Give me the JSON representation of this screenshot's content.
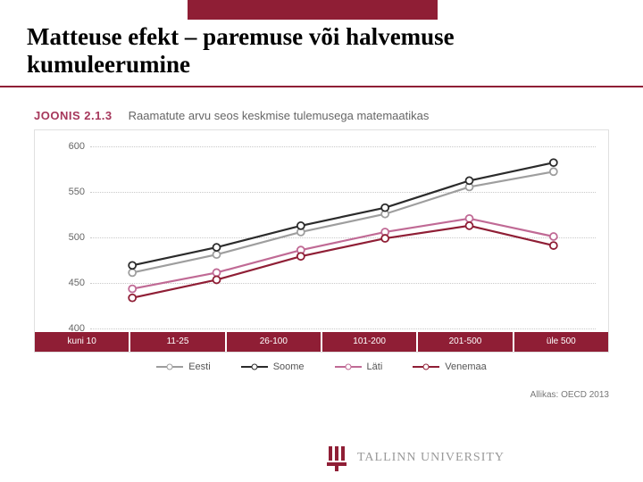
{
  "slide": {
    "title": "Matteuse efekt – paremuse või halvemuse kumuleerumine",
    "top_bar_color": "#8f1e35",
    "underline_color": "#8f1e35"
  },
  "figure": {
    "label": "JOONIS 2.1.3",
    "title": "Raamatute arvu seos keskmise tulemusega matemaatikas",
    "label_color": "#a6375b",
    "title_color": "#666666",
    "border_color": "#e0e0e0"
  },
  "chart": {
    "type": "line",
    "ylim": [
      400,
      600
    ],
    "yticks": [
      400,
      450,
      500,
      550,
      600
    ],
    "grid_color": "#c9c9c9",
    "background_color": "#ffffff",
    "categories": [
      "kuni 10",
      "11-25",
      "26-100",
      "101-200",
      "201-500",
      "üle 500"
    ],
    "xband_color": "#8f1e35",
    "xband_text_color": "#ffffff",
    "marker_fill": "#ffffff",
    "marker_radius": 4,
    "line_width": 2.2,
    "label_fontsize": 11,
    "series": [
      {
        "name": "Eesti",
        "color": "#9e9e9e",
        "values": [
          460,
          480,
          505,
          525,
          555,
          572
        ]
      },
      {
        "name": "Soome",
        "color": "#2b2b2b",
        "values": [
          468,
          488,
          512,
          532,
          562,
          582
        ]
      },
      {
        "name": "Läti",
        "color": "#c06a95",
        "values": [
          442,
          460,
          485,
          505,
          520,
          500
        ]
      },
      {
        "name": "Venemaa",
        "color": "#8f1e35",
        "values": [
          432,
          452,
          478,
          498,
          512,
          490
        ]
      }
    ]
  },
  "source": {
    "text": "Allikas: OECD 2013"
  },
  "university": {
    "name": "TALLINN UNIVERSITY",
    "logo_color": "#8f1e35"
  }
}
